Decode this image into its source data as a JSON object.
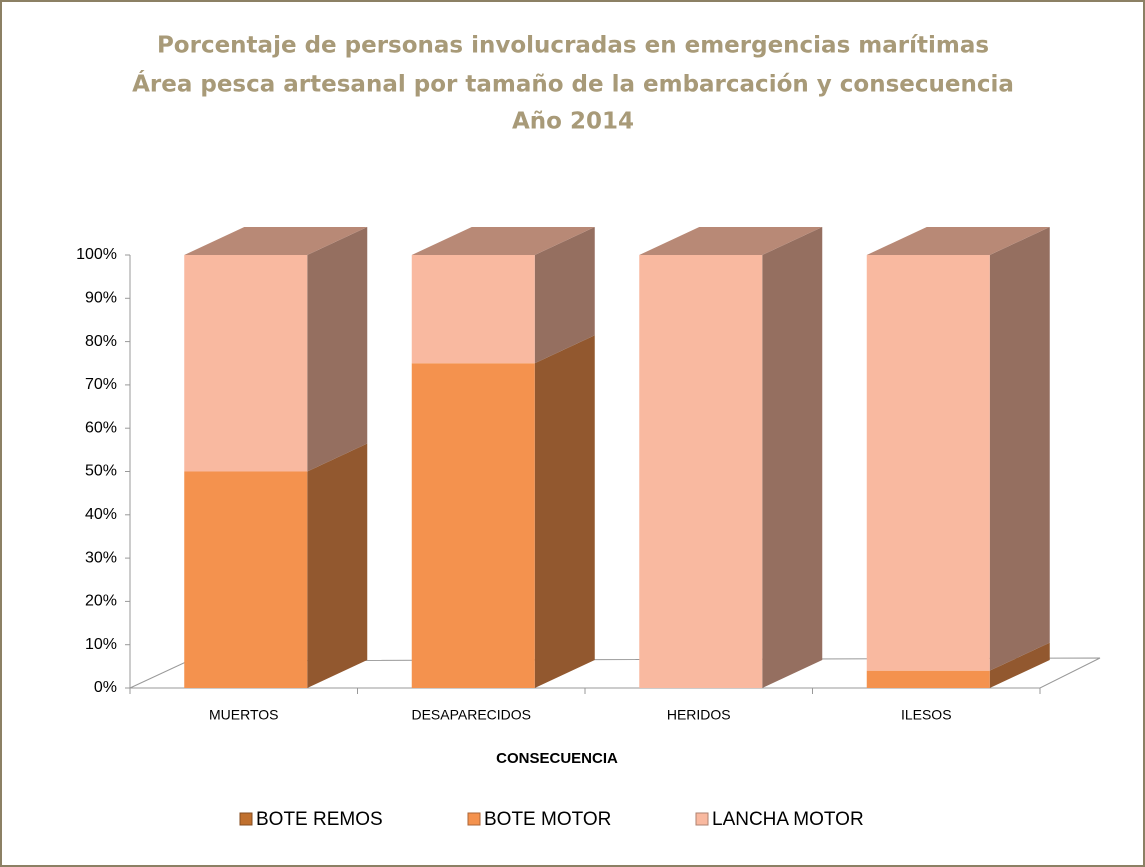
{
  "chart_data": {
    "type": "bar3d_stacked",
    "title": [
      "Porcentaje de personas involucradas en emergencias marítimas",
      "Área pesca artesanal por tamaño de la embarcación y consecuencia",
      "Año 2014"
    ],
    "xlabel": "CONSECUENCIA",
    "categories": [
      "MUERTOS",
      "DESAPARECIDOS",
      "HERIDOS",
      "ILESOS"
    ],
    "series": [
      {
        "name": "BOTE REMOS",
        "color": "#c0702e",
        "values": [
          0,
          0,
          0,
          0
        ]
      },
      {
        "name": "BOTE MOTOR",
        "color": "#f4924e",
        "values": [
          50,
          75,
          0,
          4
        ]
      },
      {
        "name": "LANCHA MOTOR",
        "color": "#f9b9a0",
        "values": [
          50,
          25,
          100,
          96
        ]
      }
    ],
    "ylim": [
      0,
      100
    ],
    "yticks": [
      {
        "value": 0,
        "label": "0%"
      },
      {
        "value": 10,
        "label": "10%"
      },
      {
        "value": 20,
        "label": "20%"
      },
      {
        "value": 30,
        "label": "30%"
      },
      {
        "value": 40,
        "label": "40%"
      },
      {
        "value": 50,
        "label": "50%"
      },
      {
        "value": 60,
        "label": "60%"
      },
      {
        "value": 70,
        "label": "70%"
      },
      {
        "value": 80,
        "label": "80%"
      },
      {
        "value": 90,
        "label": "90%"
      },
      {
        "value": 100,
        "label": "100%"
      }
    ],
    "legend": "bottom"
  }
}
